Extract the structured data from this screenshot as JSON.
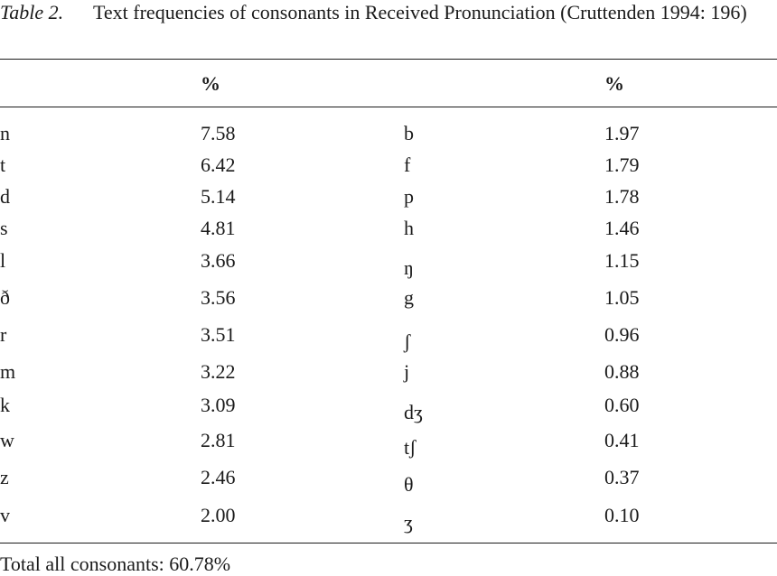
{
  "caption": {
    "label": "Table 2.",
    "text": "Text frequencies of consonants in Received Pronunciation (Cruttenden 1994: 196)"
  },
  "table": {
    "headers": [
      "",
      "%",
      "",
      "%"
    ],
    "rows": [
      [
        "n",
        "7.58",
        "b",
        "1.97"
      ],
      [
        "t",
        "6.42",
        "f",
        "1.79"
      ],
      [
        "d",
        "5.14",
        "p",
        "1.78"
      ],
      [
        "s",
        "4.81",
        "h",
        "1.46"
      ],
      [
        "l",
        "3.66",
        "ŋ",
        "1.15"
      ],
      [
        "ð",
        "3.56",
        "g",
        "1.05"
      ],
      [
        "r",
        "3.51",
        "ʃ",
        "0.96"
      ],
      [
        "m",
        "3.22",
        "j",
        "0.88"
      ],
      [
        "k",
        "3.09",
        "dʒ",
        "0.60"
      ],
      [
        "w",
        "2.81",
        "tʃ",
        "0.41"
      ],
      [
        "z",
        "2.46",
        "θ",
        "0.37"
      ],
      [
        "v",
        "2.00",
        "ʒ",
        "0.10"
      ]
    ],
    "total": "Total all consonants: 60.78%"
  }
}
